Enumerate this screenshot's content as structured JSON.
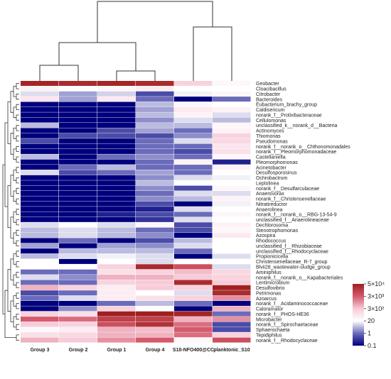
{
  "chart_data": {
    "type": "heatmap",
    "title": "",
    "columns": [
      "Group 3",
      "Group 2",
      "Group 1",
      "Group 4",
      "S10-NFO400@CC",
      "planktonic_S10"
    ],
    "rows": [
      "Geobacter",
      "Cloacibacillus",
      "Citrobacter",
      "Bacteroides",
      "Eubacterium_brachy_group",
      "Caldisericum",
      "norank_f__Prolixibacteraceae",
      "Cellulomonas",
      "unclassified_k__norank_d__Bacteria",
      "Actinomyces",
      "Thiomonas",
      "Pseudomonas",
      "norank_f__norank_o__Chthonomonadales",
      "norank_f__Pleomorphomonadaceae",
      "Castellaniella",
      "Pleomorphomonas",
      "Acinetobacter",
      "Desulfosporosinus",
      "Ochrobactrum",
      "Leptolinea",
      "norank_f__Desulfarculaceae",
      "Anaerovorax",
      "norank_f__Christensenellaceae",
      "Nitratireductor",
      "Anaerolinea",
      "norank_f__norank_o__RBG-13-54-9",
      "unclassified_f__Anaerolineaceae",
      "Dechlorosoma",
      "Stenotrophomonas",
      "Azospira",
      "Rhodococcus",
      "unclassified_f__Rhizobiaceae",
      "unclassified_f__Rhodocyclaceae",
      "Propionicicella",
      "Christensenellaceae_R-7_group",
      "Blvii28_wastewater-sludge_group",
      "Aminiphilus",
      "norank_f__norank_o__Kapabacteriales",
      "Lentimicrobium",
      "Desulfovibrio",
      "Petrimonas",
      "Azoarcus",
      "norank_f__Acidaminococcaceae",
      "Caloramator",
      "norank_f__PHOS-HE36",
      "Microbacter",
      "norank_f__Spirochaetaceae",
      "Sphaerochaeta",
      "Tepidiphilus",
      "norank_f__Rhodocyclaceae"
    ],
    "values": [
      [
        40000.0,
        30000.0,
        40000.0,
        30000.0,
        200,
        30
      ],
      [
        40,
        20,
        30,
        50,
        20,
        20
      ],
      [
        10,
        3,
        8,
        0.5,
        15,
        30
      ],
      [
        80,
        3,
        60,
        1,
        0.1,
        1
      ],
      [
        0.1,
        0.1,
        0.1,
        5,
        30,
        20
      ],
      [
        0.1,
        0.1,
        0.1,
        3,
        60,
        40
      ],
      [
        0.1,
        0.1,
        0.1,
        5,
        40,
        10
      ],
      [
        0.1,
        0.1,
        0.1,
        2,
        10,
        5
      ],
      [
        5,
        0.1,
        0.1,
        5,
        5,
        30
      ],
      [
        0.1,
        0.1,
        0.5,
        3,
        1,
        40
      ],
      [
        0.1,
        0.5,
        0.5,
        0.5,
        2,
        200
      ],
      [
        0.5,
        0.1,
        0.1,
        1,
        10,
        150
      ],
      [
        0.1,
        0.1,
        0.1,
        1,
        1,
        80
      ],
      [
        0.1,
        0.1,
        0.1,
        1,
        0.5,
        100
      ],
      [
        5,
        0.1,
        1,
        2,
        1,
        30
      ],
      [
        0.1,
        0.1,
        0.1,
        1,
        40,
        0.2
      ],
      [
        0.1,
        1,
        5,
        1,
        1,
        40
      ],
      [
        10,
        0.5,
        1,
        3,
        1,
        20
      ],
      [
        0.1,
        0.1,
        0.1,
        2,
        10,
        15
      ],
      [
        0.1,
        0.1,
        0.1,
        5,
        20,
        20
      ],
      [
        0.1,
        0.1,
        0.1,
        2,
        0.5,
        30
      ],
      [
        0.1,
        0.1,
        0.1,
        1,
        10,
        10
      ],
      [
        0.1,
        0.1,
        0.1,
        2,
        5,
        40
      ],
      [
        0.1,
        0.1,
        0.1,
        0.5,
        0.1,
        15
      ],
      [
        0.1,
        0.1,
        0.1,
        0.2,
        10,
        20
      ],
      [
        0.1,
        0.1,
        0.2,
        0.5,
        1,
        30
      ],
      [
        0.1,
        0.1,
        0.1,
        0.3,
        10,
        20
      ],
      [
        10,
        20,
        10,
        30,
        0.5,
        40
      ],
      [
        5,
        10,
        5,
        1,
        0.5,
        30
      ],
      [
        5,
        10,
        5,
        2,
        0.1,
        60
      ],
      [
        0.1,
        1,
        0.1,
        0.5,
        5,
        20
      ],
      [
        3,
        0.1,
        3,
        2,
        10,
        20
      ],
      [
        0.1,
        5,
        5,
        5,
        1,
        20
      ],
      [
        5,
        10,
        15,
        10,
        0.1,
        10
      ],
      [
        20,
        0.1,
        20,
        10,
        20,
        20
      ],
      [
        20,
        20,
        200,
        30000.0,
        5000,
        10
      ],
      [
        1,
        1,
        100,
        200,
        400,
        150
      ],
      [
        10,
        2,
        500,
        500,
        300,
        200
      ],
      [
        1,
        1,
        200,
        300,
        30000.0,
        300
      ],
      [
        500,
        200,
        50,
        300,
        200,
        50000.0
      ],
      [
        0.5,
        1,
        50,
        20,
        10,
        30000.0
      ],
      [
        1,
        10,
        50,
        100,
        200,
        1000
      ],
      [
        0.1,
        0.1,
        1,
        5,
        1,
        0.1
      ],
      [
        0.1,
        2,
        200,
        20,
        0.1,
        500
      ],
      [
        200,
        100,
        50000.0,
        50000.0,
        40000.0,
        1
      ],
      [
        3000,
        2000,
        10000.0,
        10000.0,
        500,
        1000
      ],
      [
        300,
        200,
        5000,
        20000.0,
        2000,
        0.5
      ],
      [
        30,
        50,
        500,
        400,
        3000,
        0.5
      ],
      [
        100,
        150,
        500,
        500,
        2000,
        200
      ],
      [
        500,
        300,
        1000,
        3000,
        30,
        5000
      ]
    ],
    "color_scale": {
      "type": "log",
      "ticks": [
        "0.1",
        "1",
        "20",
        "3×10²",
        "3×10³",
        "5×10⁴"
      ],
      "tick_values": [
        0.1,
        1,
        20,
        300,
        3000,
        50000
      ],
      "colors": [
        "#00007d",
        "#6b6bbb",
        "#ffffff",
        "#f7cbd8",
        "#d45a6c",
        "#a02020"
      ]
    },
    "legend": "right",
    "grid": false
  }
}
